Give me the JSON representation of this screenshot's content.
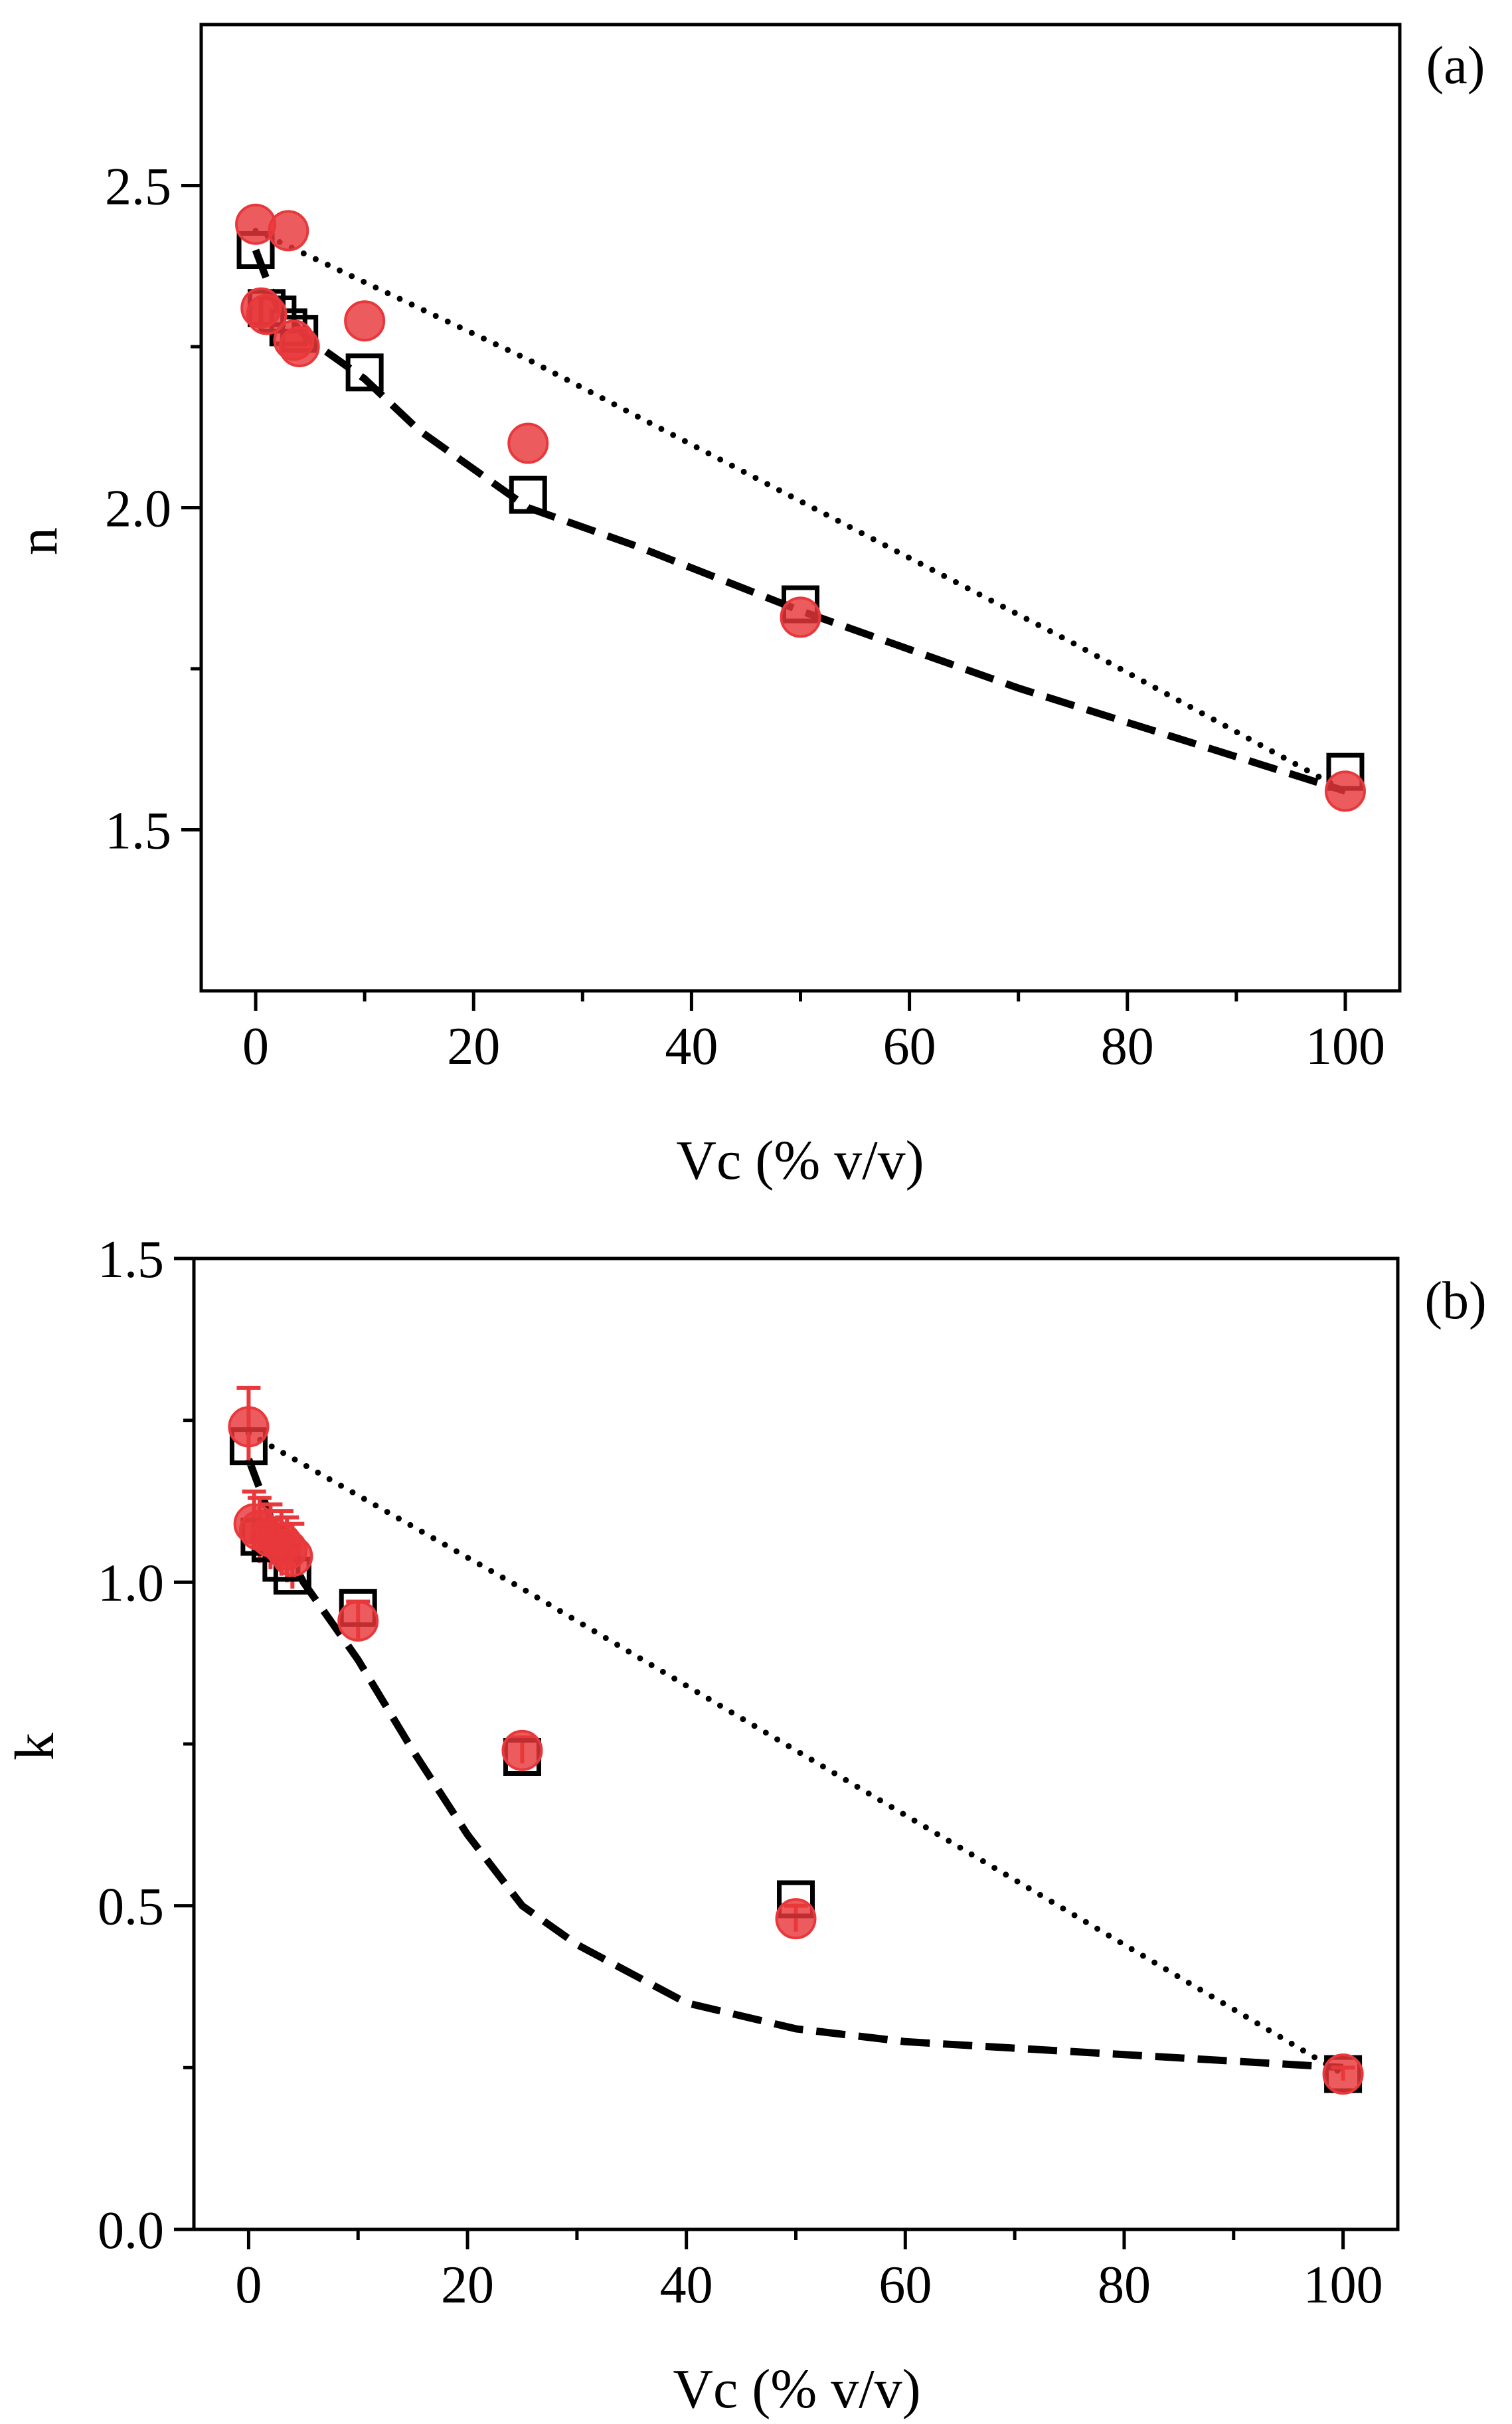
{
  "chart_data": [
    {
      "panel": "a",
      "type": "scatter",
      "panel_label": "(a)",
      "xlabel": "Vc (% v/v)",
      "ylabel": "n",
      "xlim": [
        -5,
        105
      ],
      "ylim": [
        1.25,
        2.75
      ],
      "xticks": [
        0,
        20,
        40,
        60,
        80,
        100
      ],
      "xminor": [
        10,
        30,
        50,
        70,
        90
      ],
      "yticks": [
        1.5,
        2.0,
        2.5
      ],
      "ytick_labels": [
        "1.5",
        "2.0",
        "2.5"
      ],
      "yminor": [
        1.75,
        2.25
      ],
      "series": [
        {
          "name": "squares",
          "marker": "open-square",
          "color": "#000000",
          "x": [
            0,
            1,
            2,
            3,
            4,
            10,
            25,
            50,
            100
          ],
          "y": [
            2.4,
            2.31,
            2.3,
            2.28,
            2.27,
            2.21,
            2.02,
            1.85,
            1.59
          ]
        },
        {
          "name": "circles",
          "marker": "filled-circle",
          "color": "#e8383b",
          "x": [
            0,
            0.5,
            1,
            3,
            3.5,
            4,
            10,
            25,
            50,
            100
          ],
          "y": [
            2.44,
            2.31,
            2.3,
            2.43,
            2.26,
            2.25,
            2.29,
            2.1,
            1.83,
            1.56
          ]
        },
        {
          "name": "dotted fit",
          "style": "dotted",
          "x": [
            0,
            25,
            50,
            75,
            100
          ],
          "y": [
            2.43,
            2.23,
            2.01,
            1.79,
            1.56
          ]
        },
        {
          "name": "dashed fit",
          "style": "dashed",
          "x": [
            0,
            2,
            5,
            10,
            15,
            25,
            35,
            50,
            70,
            100
          ],
          "y": [
            2.4,
            2.31,
            2.26,
            2.2,
            2.12,
            2.0,
            1.94,
            1.84,
            1.72,
            1.56
          ]
        }
      ]
    },
    {
      "panel": "b",
      "type": "scatter",
      "panel_label": "(b)",
      "xlabel": "Vc (% v/v)",
      "ylabel": "k",
      "xlim": [
        -5,
        105
      ],
      "ylim": [
        0.0,
        1.5
      ],
      "xticks": [
        0,
        20,
        40,
        60,
        80,
        100
      ],
      "xminor": [
        10,
        30,
        50,
        70,
        90
      ],
      "yticks": [
        0.0,
        0.5,
        1.0,
        1.5
      ],
      "ytick_labels": [
        "0.0",
        "0.5",
        "1.0",
        "1.5"
      ],
      "yminor": [
        0.25,
        0.75,
        1.25
      ],
      "series": [
        {
          "name": "squares",
          "marker": "open-square",
          "color": "#000000",
          "x": [
            0,
            1,
            2,
            3,
            4,
            10,
            25,
            50,
            100
          ],
          "y": [
            1.21,
            1.07,
            1.06,
            1.03,
            1.01,
            0.96,
            0.73,
            0.51,
            0.24
          ]
        },
        {
          "name": "circles",
          "marker": "filled-circle",
          "color": "#e8383b",
          "x": [
            0,
            0.5,
            1,
            2,
            3,
            3.5,
            4,
            10,
            25,
            50,
            100
          ],
          "y": [
            1.24,
            1.09,
            1.08,
            1.07,
            1.06,
            1.05,
            1.04,
            0.94,
            0.74,
            0.48,
            0.24
          ],
          "err": [
            0.06,
            0.05,
            0.05,
            0.05,
            0.05,
            0.05,
            0.05,
            0.03,
            0.02,
            0.02,
            0.01
          ]
        },
        {
          "name": "dotted fit",
          "style": "dotted",
          "x": [
            0,
            25,
            50,
            75,
            100
          ],
          "y": [
            1.23,
            0.99,
            0.74,
            0.49,
            0.24
          ]
        },
        {
          "name": "dashed fit",
          "style": "dashed",
          "x": [
            0,
            2,
            5,
            10,
            15,
            20,
            25,
            30,
            40,
            50,
            60,
            70,
            80,
            100
          ],
          "y": [
            1.19,
            1.1,
            1.0,
            0.88,
            0.74,
            0.61,
            0.5,
            0.44,
            0.35,
            0.31,
            0.29,
            0.28,
            0.27,
            0.25
          ]
        }
      ]
    }
  ]
}
